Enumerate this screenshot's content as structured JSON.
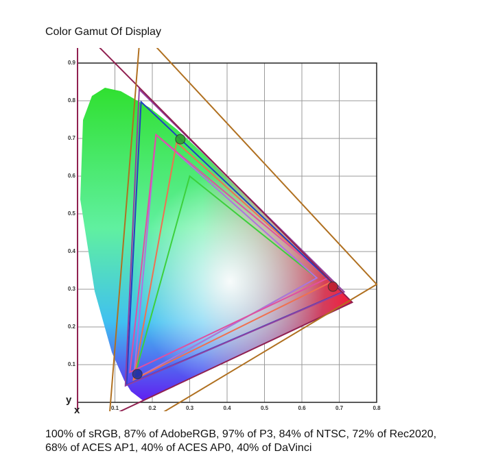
{
  "chart_data": {
    "type": "gamut",
    "title": "Color Gamut Of Display",
    "caption": "100% of sRGB, 87% of AdobeRGB, 97% of P3, 84% of NTSC, 72% of Rec2020, 68% of ACES AP1, 40% of ACES AP0, 40% of DaVinci",
    "x_label": "x",
    "y_label": "y",
    "xlim": [
      0,
      0.8
    ],
    "ylim": [
      0,
      0.9
    ],
    "xticks": [
      0.1,
      0.2,
      0.3,
      0.4,
      0.5,
      0.6,
      0.7,
      0.8
    ],
    "yticks": [
      0.1,
      0.2,
      0.3,
      0.4,
      0.5,
      0.6,
      0.7,
      0.8,
      0.9
    ],
    "grid": true,
    "series": [
      {
        "color": "#3cd03c",
        "x": [
          0.64,
          0.3,
          0.15
        ],
        "y": [
          0.33,
          0.6,
          0.06
        ]
      },
      {
        "color": "#b070e0",
        "x": [
          0.64,
          0.21,
          0.15
        ],
        "y": [
          0.33,
          0.71,
          0.06
        ]
      },
      {
        "color": "#f07050",
        "x": [
          0.68,
          0.265,
          0.15
        ],
        "y": [
          0.32,
          0.69,
          0.06
        ]
      },
      {
        "color": "#e050a0",
        "x": [
          0.67,
          0.21,
          0.14
        ],
        "y": [
          0.33,
          0.71,
          0.08
        ]
      },
      {
        "color": "#2040c0",
        "x": [
          0.708,
          0.17,
          0.131
        ],
        "y": [
          0.292,
          0.797,
          0.046
        ]
      },
      {
        "color": "#9040a0",
        "x": [
          0.713,
          0.165,
          0.128
        ],
        "y": [
          0.293,
          0.83,
          0.044
        ]
      },
      {
        "color": "#902050",
        "x": [
          0.7347,
          0.0,
          0.0001
        ],
        "y": [
          0.2653,
          1.0,
          -0.077
        ]
      },
      {
        "color": "#b07020",
        "x": [
          0.8,
          0.1682,
          0.079
        ],
        "y": [
          0.313,
          0.9877,
          -0.1155
        ]
      }
    ],
    "points": {
      "x": [
        0.275,
        0.683,
        0.16
      ],
      "y": [
        0.698,
        0.307,
        0.075
      ],
      "colors": [
        "#30a030",
        "#c02030",
        "#2030a0"
      ]
    }
  }
}
